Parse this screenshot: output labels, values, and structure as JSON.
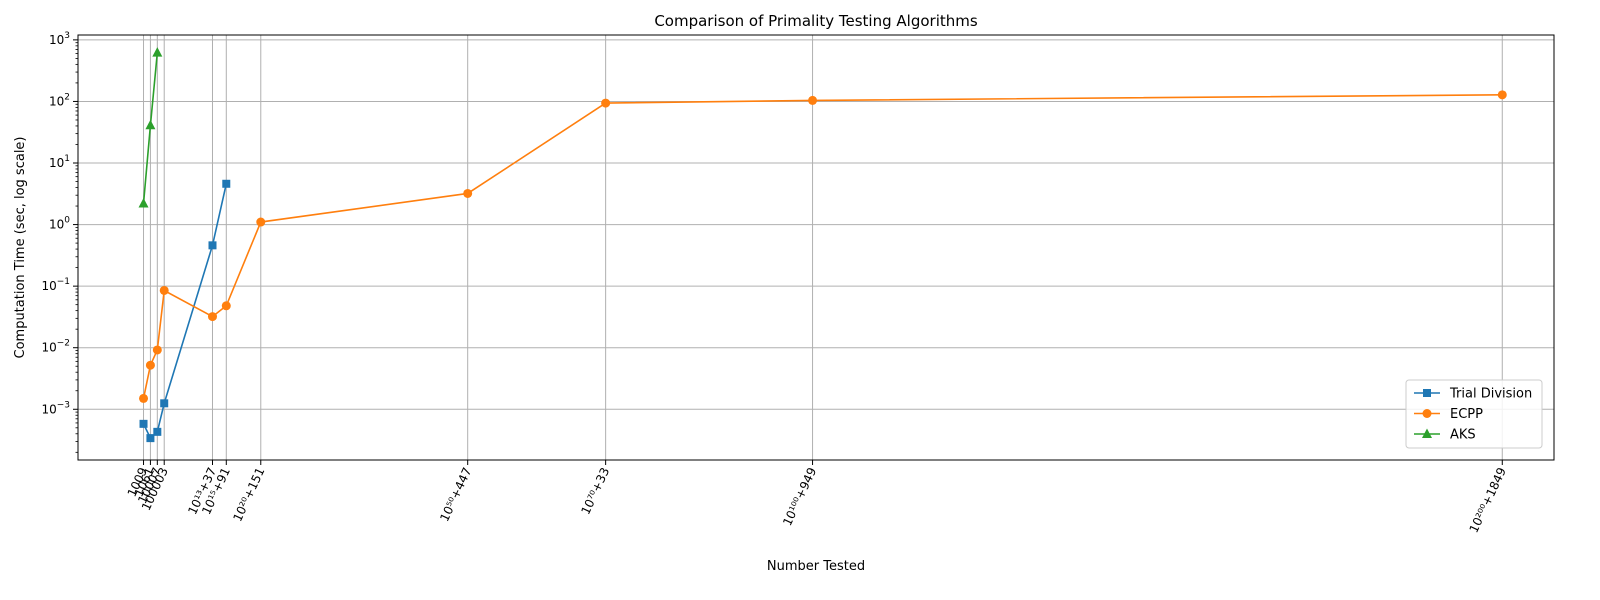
{
  "chart_data": {
    "type": "line",
    "title": "Comparison of Primality Testing Algorithms",
    "xlabel": "Number Tested",
    "ylabel": "Computation Time (sec, log scale)",
    "y_scale": "log",
    "ylim": [
      0.00015,
      1200
    ],
    "y_ticks": [
      {
        "value": 0.001,
        "base": "10",
        "exp": "−3"
      },
      {
        "value": 0.01,
        "base": "10",
        "exp": "−2"
      },
      {
        "value": 0.1,
        "base": "10",
        "exp": "−1"
      },
      {
        "value": 1,
        "base": "10",
        "exp": "0"
      },
      {
        "value": 10,
        "base": "10",
        "exp": "1"
      },
      {
        "value": 100,
        "base": "10",
        "exp": "2"
      },
      {
        "value": 1000,
        "base": "10",
        "exp": "3"
      }
    ],
    "x_scale": "categorical index",
    "xlim": [
      -9.5,
      204.5
    ],
    "categories": [
      {
        "label": "1009",
        "index": 0
      },
      {
        "label": "1061",
        "index": 1
      },
      {
        "label": "10007",
        "index": 2
      },
      {
        "label": "100003",
        "index": 3
      },
      {
        "label": "10¹³+37",
        "index": 10
      },
      {
        "label": "10¹⁵+91",
        "index": 12
      },
      {
        "label": "10²⁰+151",
        "index": 17
      },
      {
        "label": "10⁵⁰+447",
        "index": 47
      },
      {
        "label": "10⁷⁰+33",
        "index": 67
      },
      {
        "label": "10¹⁰⁰+949",
        "index": 97
      },
      {
        "label": "10²⁰⁰+1849",
        "index": 197
      }
    ],
    "grid": true,
    "legend_position": "bottom-right",
    "series": [
      {
        "name": "Trial Division",
        "color": "#1f77b4",
        "marker": "square",
        "points": [
          [
            0,
            0.00058
          ],
          [
            1,
            0.00034
          ],
          [
            2,
            0.00043
          ],
          [
            3,
            0.00125
          ],
          [
            10,
            0.46
          ],
          [
            12,
            4.6
          ]
        ]
      },
      {
        "name": "ECPP",
        "color": "#ff7f0e",
        "marker": "circle",
        "points": [
          [
            0,
            0.0015
          ],
          [
            1,
            0.0052
          ],
          [
            2,
            0.0092
          ],
          [
            3,
            0.085
          ],
          [
            10,
            0.032
          ],
          [
            12,
            0.048
          ],
          [
            17,
            1.1
          ],
          [
            47,
            3.2
          ],
          [
            67,
            94
          ],
          [
            97,
            104
          ],
          [
            197,
            128
          ]
        ]
      },
      {
        "name": "AKS",
        "color": "#2ca02c",
        "marker": "triangle",
        "points": [
          [
            0,
            2.2
          ],
          [
            1,
            41
          ],
          [
            2,
            620
          ]
        ]
      }
    ]
  }
}
